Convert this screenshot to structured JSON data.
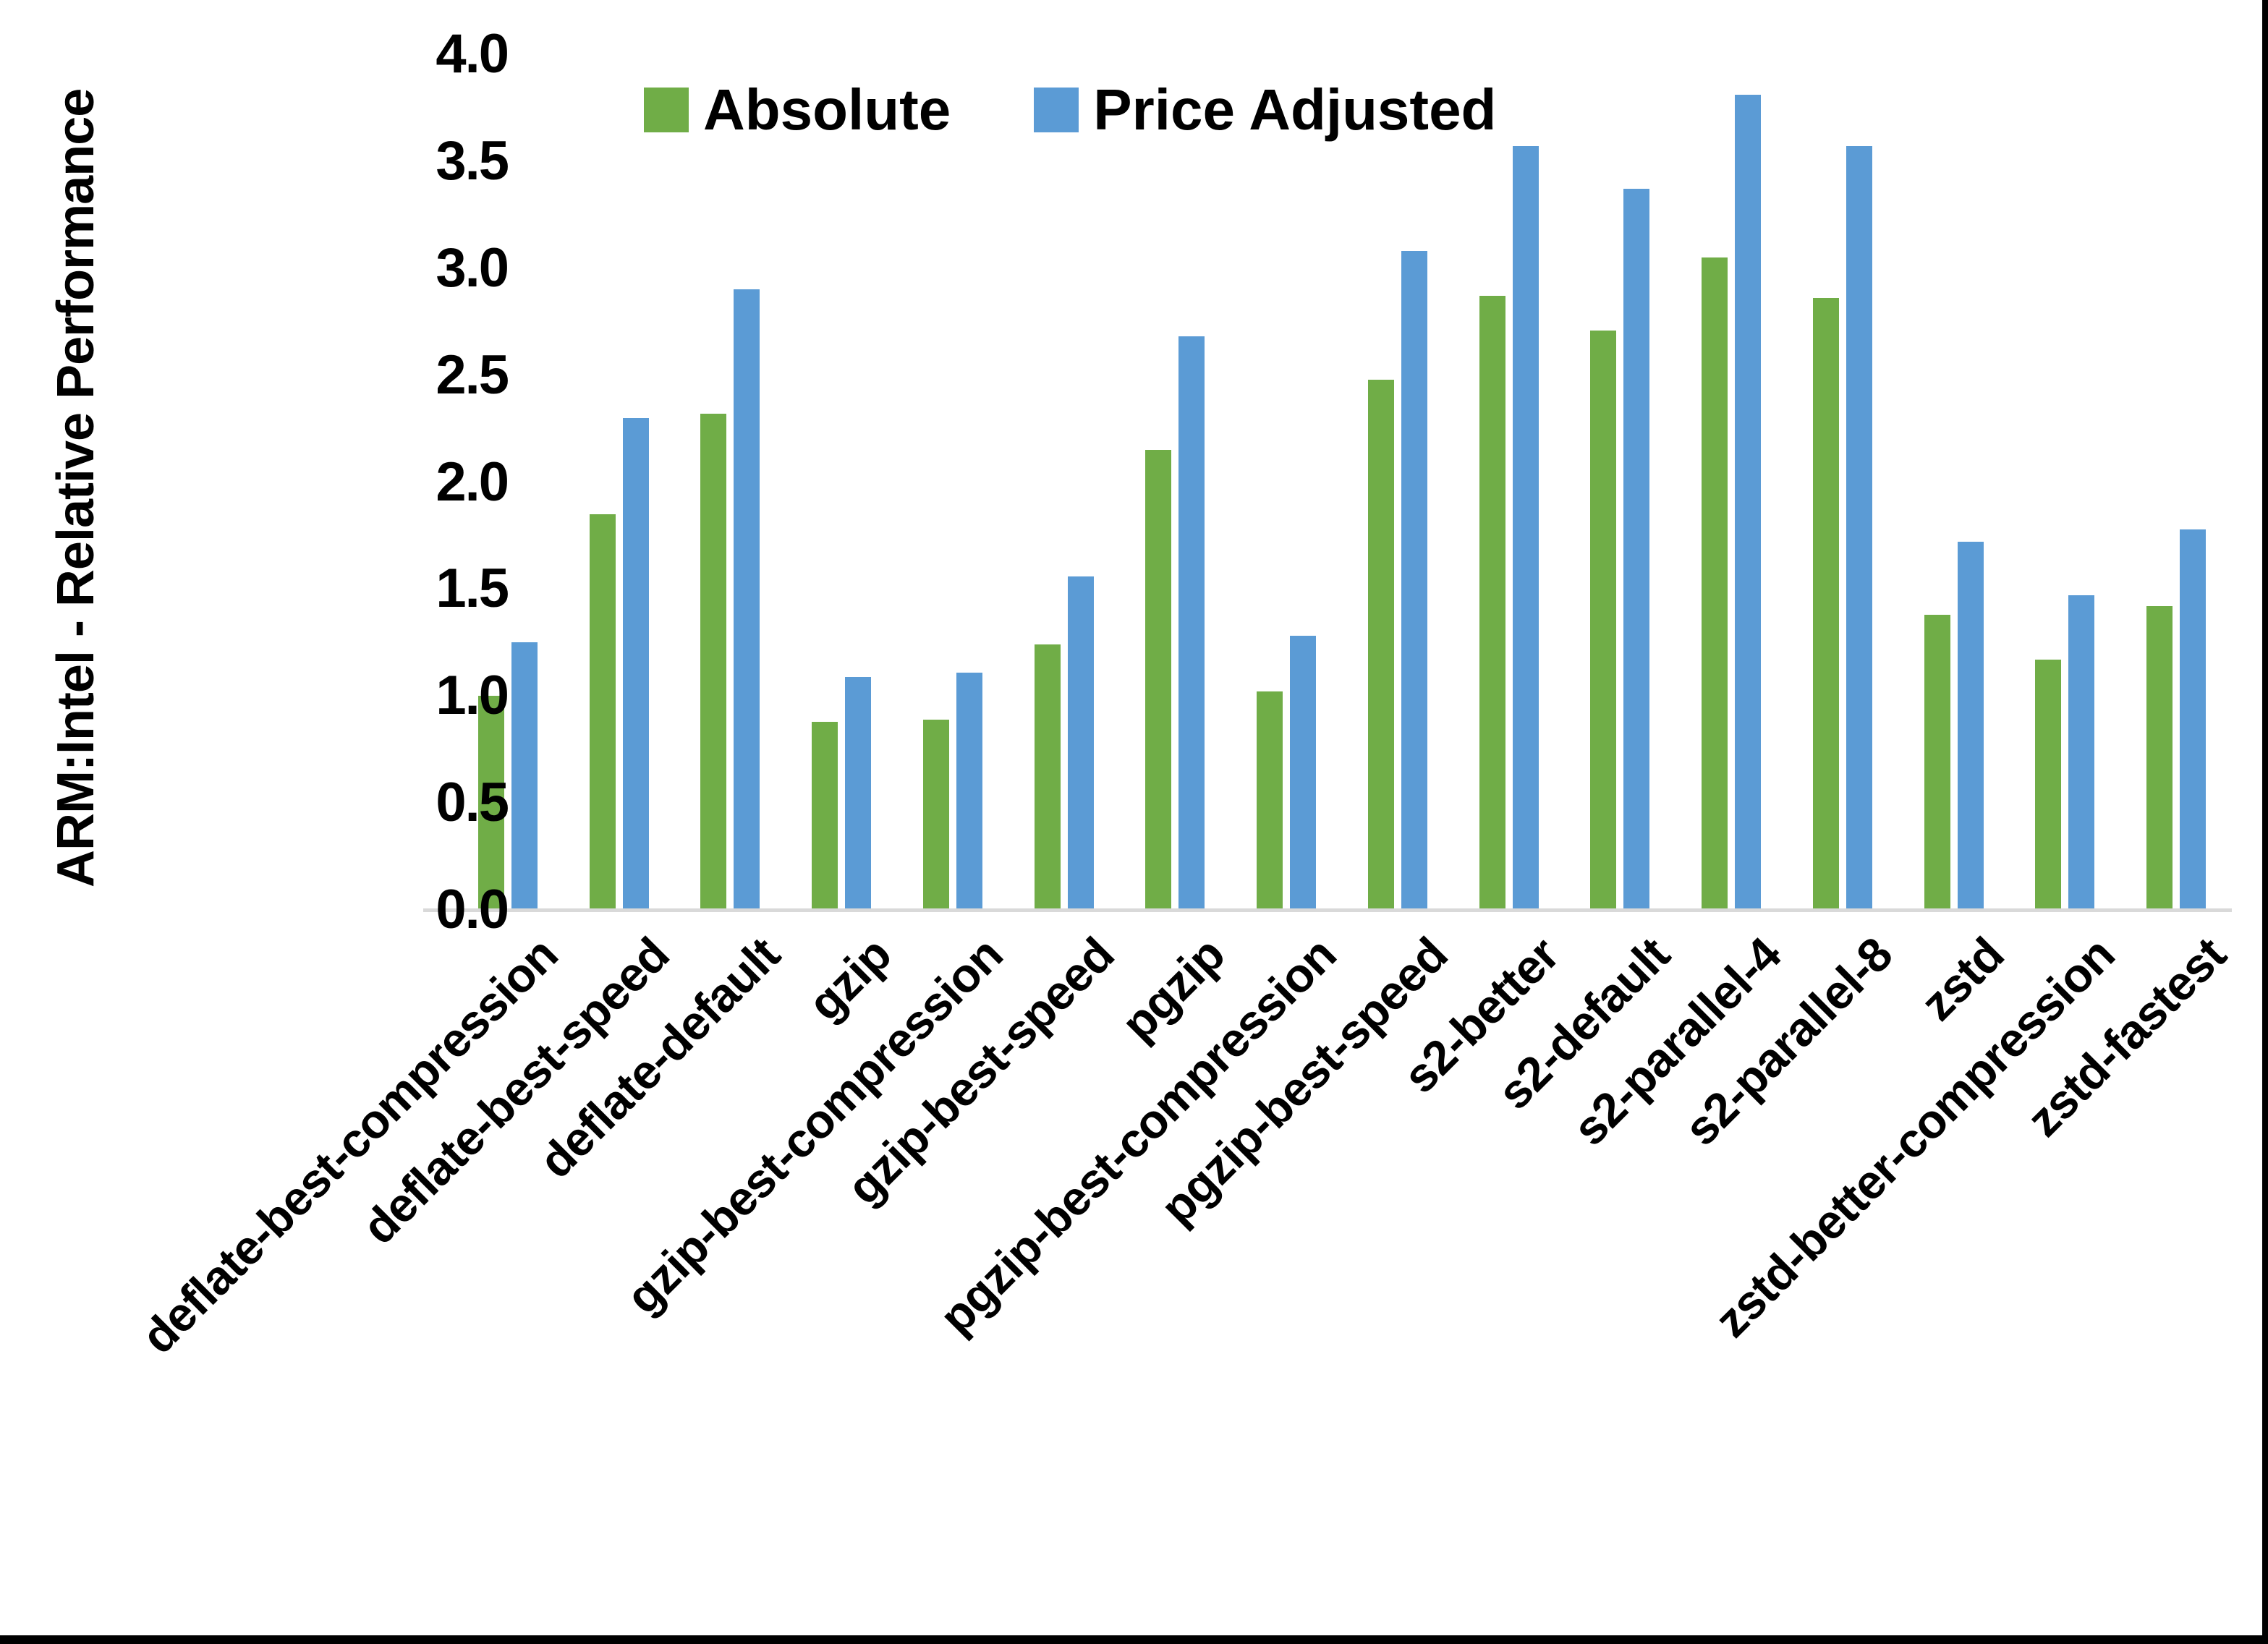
{
  "chart_data": {
    "type": "bar",
    "title": "",
    "ylabel": "ARM:Intel - Relative Performance",
    "xlabel": "",
    "ylim": [
      0.0,
      4.0
    ],
    "ytick_step": 0.5,
    "yticks": [
      "4.0",
      "3.5",
      "3.0",
      "2.5",
      "2.0",
      "1.5",
      "1.0",
      "0.5",
      "0.0"
    ],
    "grid": false,
    "legend_position": "top",
    "categories": [
      "deflate-best-compression",
      "deflate-best-speed",
      "deflate-default",
      "gzip",
      "gzip-best-compression",
      "gzip-best-speed",
      "pgzip",
      "pgzip-best-compression",
      "pgzip-best-speed",
      "s2-better",
      "s2-default",
      "s2-parallel-4",
      "s2-parallel-8",
      "zstd",
      "zstd-better-compression",
      "zstd-fastest"
    ],
    "series": [
      {
        "name": "Absolute",
        "color": "#70AD47",
        "values": [
          1.0,
          1.85,
          2.32,
          0.88,
          0.89,
          1.24,
          2.15,
          1.02,
          2.48,
          2.87,
          2.71,
          3.05,
          2.86,
          1.38,
          1.17,
          1.42
        ]
      },
      {
        "name": "Price Adjusted",
        "color": "#5B9BD5",
        "values": [
          1.25,
          2.3,
          2.9,
          1.09,
          1.11,
          1.56,
          2.68,
          1.28,
          3.08,
          3.57,
          3.37,
          3.81,
          3.57,
          1.72,
          1.47,
          1.78
        ]
      }
    ],
    "axis_line_color": "#D9D9D9",
    "text_color": "#000000",
    "background": "#FFFFFF",
    "frame_border_color": "#000000"
  }
}
